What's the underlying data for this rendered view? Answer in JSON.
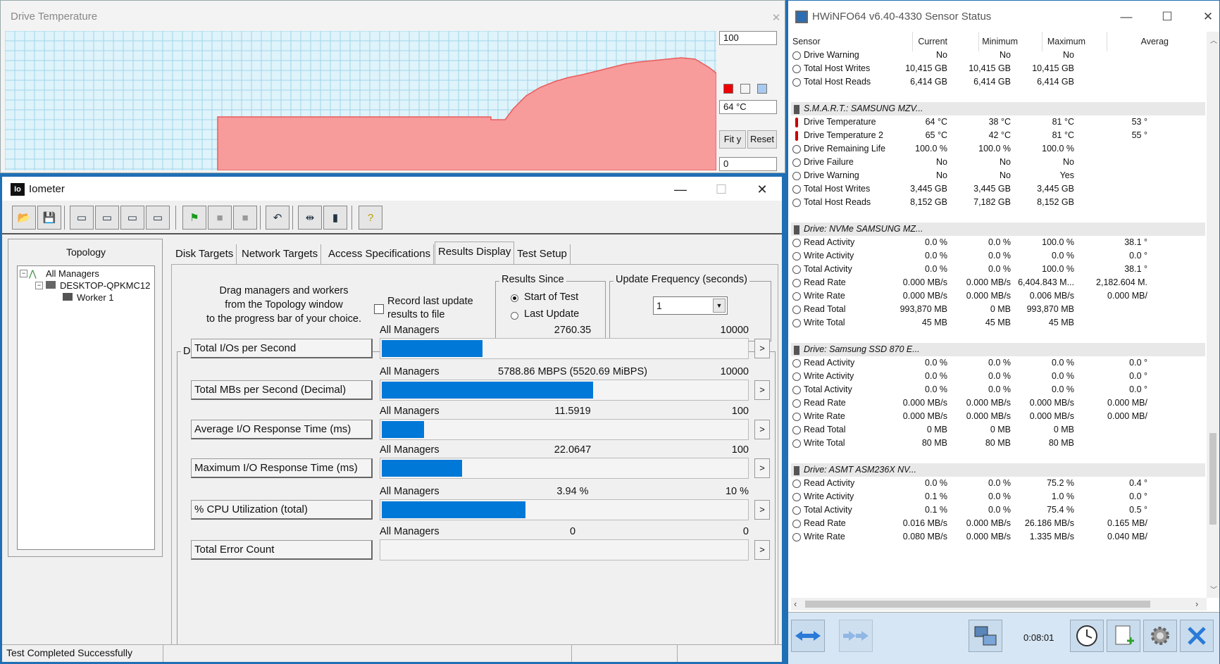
{
  "temp_window": {
    "title": "Drive Temperature",
    "close": "✕",
    "max_value": "100",
    "current": "64 °C",
    "min_value": "0",
    "fit_y": "Fit y",
    "reset": "Reset",
    "colors": {
      "fill": "#f79b9b",
      "line": "#e85c5c",
      "grid": "#9fd6e8",
      "bg": "#dff3fb"
    }
  },
  "iometer": {
    "title": "Iometer",
    "toolbar_icons": [
      "open-icon",
      "save-icon",
      "new-manager-icon",
      "new-disk-worker-icon",
      "new-network-worker-icon",
      "copy-worker-icon",
      "start-icon",
      "stop-icon",
      "stop-all-icon",
      "reset-workers-icon",
      "disconnect-icon",
      "exit-icon",
      "about-icon"
    ],
    "topology": {
      "title": "Topology",
      "items": [
        "All Managers",
        "DESKTOP-QPKMC12",
        "Worker 1"
      ]
    },
    "tabs": [
      "Disk Targets",
      "Network Targets",
      "Access Specifications",
      "Results Display",
      "Test Setup"
    ],
    "drag_text": [
      "Drag managers and workers",
      "from the Topology window",
      "to the progress bar of your choice."
    ],
    "record_label": [
      "Record last update",
      "results to file"
    ],
    "results_since": {
      "label": "Results Since",
      "options": [
        "Start of Test",
        "Last Update"
      ]
    },
    "update_frequency": {
      "label": "Update Frequency (seconds)",
      "value": "1"
    },
    "display_label": "Display",
    "metrics": [
      {
        "label": "Total I/Os per Second",
        "manager": "All Managers",
        "value": "2760.35",
        "max": "10000",
        "fraction": 0.276
      },
      {
        "label": "Total MBs per Second (Decimal)",
        "manager": "All Managers",
        "value": "5788.86 MBPS (5520.69 MiBPS)",
        "max": "10000",
        "fraction": 0.579
      },
      {
        "label": "Average I/O Response Time (ms)",
        "manager": "All Managers",
        "value": "11.5919",
        "max": "100",
        "fraction": 0.116
      },
      {
        "label": "Maximum I/O Response Time (ms)",
        "manager": "All Managers",
        "value": "22.0647",
        "max": "100",
        "fraction": 0.221
      },
      {
        "label": "% CPU Utilization (total)",
        "manager": "All Managers",
        "value": "3.94 %",
        "max": "10 %",
        "fraction": 0.394
      },
      {
        "label": "Total Error Count",
        "manager": "All Managers",
        "value": "0",
        "max": "0",
        "fraction": 0
      }
    ],
    "more_button": ">",
    "status": "Test Completed Successfully"
  },
  "hwinfo": {
    "title": "HWiNFO64 v6.40-4330 Sensor Status",
    "columns": [
      "Sensor",
      "Current",
      "Minimum",
      "Maximum",
      "Averag"
    ],
    "rows": [
      {
        "type": "sensor",
        "icon": "gauge",
        "name": "Drive Warning",
        "cur": "No",
        "min": "No",
        "max": "No",
        "avg": ""
      },
      {
        "type": "sensor",
        "icon": "gauge",
        "name": "Total Host Writes",
        "cur": "10,415 GB",
        "min": "10,415 GB",
        "max": "10,415 GB",
        "avg": ""
      },
      {
        "type": "sensor",
        "icon": "gauge",
        "name": "Total Host Reads",
        "cur": "6,414 GB",
        "min": "6,414 GB",
        "max": "6,414 GB",
        "avg": ""
      },
      {
        "type": "blank"
      },
      {
        "type": "section",
        "name": "S.M.A.R.T.: SAMSUNG MZV..."
      },
      {
        "type": "sensor",
        "icon": "therm",
        "name": "Drive Temperature",
        "cur": "64 °C",
        "min": "38 °C",
        "max": "81 °C",
        "avg": "53 °"
      },
      {
        "type": "sensor",
        "icon": "therm",
        "name": "Drive Temperature 2",
        "cur": "65 °C",
        "min": "42 °C",
        "max": "81 °C",
        "avg": "55 °"
      },
      {
        "type": "sensor",
        "icon": "gauge",
        "name": "Drive Remaining Life",
        "cur": "100.0 %",
        "min": "100.0 %",
        "max": "100.0 %",
        "avg": ""
      },
      {
        "type": "sensor",
        "icon": "gauge",
        "name": "Drive Failure",
        "cur": "No",
        "min": "No",
        "max": "No",
        "avg": ""
      },
      {
        "type": "sensor",
        "icon": "gauge",
        "name": "Drive Warning",
        "cur": "No",
        "min": "No",
        "max": "Yes",
        "avg": ""
      },
      {
        "type": "sensor",
        "icon": "gauge",
        "name": "Total Host Writes",
        "cur": "3,445 GB",
        "min": "3,445 GB",
        "max": "3,445 GB",
        "avg": ""
      },
      {
        "type": "sensor",
        "icon": "gauge",
        "name": "Total Host Reads",
        "cur": "8,152 GB",
        "min": "7,182 GB",
        "max": "8,152 GB",
        "avg": ""
      },
      {
        "type": "blank"
      },
      {
        "type": "section",
        "name": "Drive: NVMe SAMSUNG MZ..."
      },
      {
        "type": "sensor",
        "icon": "gauge",
        "name": "Read Activity",
        "cur": "0.0 %",
        "min": "0.0 %",
        "max": "100.0 %",
        "avg": "38.1 °"
      },
      {
        "type": "sensor",
        "icon": "gauge",
        "name": "Write Activity",
        "cur": "0.0 %",
        "min": "0.0 %",
        "max": "0.0 %",
        "avg": "0.0 °"
      },
      {
        "type": "sensor",
        "icon": "gauge",
        "name": "Total Activity",
        "cur": "0.0 %",
        "min": "0.0 %",
        "max": "100.0 %",
        "avg": "38.1 °"
      },
      {
        "type": "sensor",
        "icon": "gauge",
        "name": "Read Rate",
        "cur": "0.000 MB/s",
        "min": "0.000 MB/s",
        "max": "6,404.843 M...",
        "avg": "2,182.604 M."
      },
      {
        "type": "sensor",
        "icon": "gauge",
        "name": "Write Rate",
        "cur": "0.000 MB/s",
        "min": "0.000 MB/s",
        "max": "0.006 MB/s",
        "avg": "0.000 MB/"
      },
      {
        "type": "sensor",
        "icon": "gauge",
        "name": "Read Total",
        "cur": "993,870 MB",
        "min": "0 MB",
        "max": "993,870 MB",
        "avg": ""
      },
      {
        "type": "sensor",
        "icon": "gauge",
        "name": "Write Total",
        "cur": "45 MB",
        "min": "45 MB",
        "max": "45 MB",
        "avg": ""
      },
      {
        "type": "blank"
      },
      {
        "type": "section",
        "name": "Drive: Samsung SSD 870 E..."
      },
      {
        "type": "sensor",
        "icon": "gauge",
        "name": "Read Activity",
        "cur": "0.0 %",
        "min": "0.0 %",
        "max": "0.0 %",
        "avg": "0.0 °"
      },
      {
        "type": "sensor",
        "icon": "gauge",
        "name": "Write Activity",
        "cur": "0.0 %",
        "min": "0.0 %",
        "max": "0.0 %",
        "avg": "0.0 °"
      },
      {
        "type": "sensor",
        "icon": "gauge",
        "name": "Total Activity",
        "cur": "0.0 %",
        "min": "0.0 %",
        "max": "0.0 %",
        "avg": "0.0 °"
      },
      {
        "type": "sensor",
        "icon": "gauge",
        "name": "Read Rate",
        "cur": "0.000 MB/s",
        "min": "0.000 MB/s",
        "max": "0.000 MB/s",
        "avg": "0.000 MB/"
      },
      {
        "type": "sensor",
        "icon": "gauge",
        "name": "Write Rate",
        "cur": "0.000 MB/s",
        "min": "0.000 MB/s",
        "max": "0.000 MB/s",
        "avg": "0.000 MB/"
      },
      {
        "type": "sensor",
        "icon": "gauge",
        "name": "Read Total",
        "cur": "0 MB",
        "min": "0 MB",
        "max": "0 MB",
        "avg": ""
      },
      {
        "type": "sensor",
        "icon": "gauge",
        "name": "Write Total",
        "cur": "80 MB",
        "min": "80 MB",
        "max": "80 MB",
        "avg": ""
      },
      {
        "type": "blank"
      },
      {
        "type": "section",
        "name": "Drive: ASMT ASM236X NV..."
      },
      {
        "type": "sensor",
        "icon": "gauge",
        "name": "Read Activity",
        "cur": "0.0 %",
        "min": "0.0 %",
        "max": "75.2 %",
        "avg": "0.4 °"
      },
      {
        "type": "sensor",
        "icon": "gauge",
        "name": "Write Activity",
        "cur": "0.1 %",
        "min": "0.0 %",
        "max": "1.0 %",
        "avg": "0.0 °"
      },
      {
        "type": "sensor",
        "icon": "gauge",
        "name": "Total Activity",
        "cur": "0.1 %",
        "min": "0.0 %",
        "max": "75.4 %",
        "avg": "0.5 °"
      },
      {
        "type": "sensor",
        "icon": "gauge",
        "name": "Read Rate",
        "cur": "0.016 MB/s",
        "min": "0.000 MB/s",
        "max": "26.186 MB/s",
        "avg": "0.165 MB/"
      },
      {
        "type": "sensor",
        "icon": "gauge",
        "name": "Write Rate",
        "cur": "0.080 MB/s",
        "min": "0.000 MB/s",
        "max": "1.335 MB/s",
        "avg": "0.040 MB/"
      }
    ],
    "elapsed": "0:08:01"
  }
}
